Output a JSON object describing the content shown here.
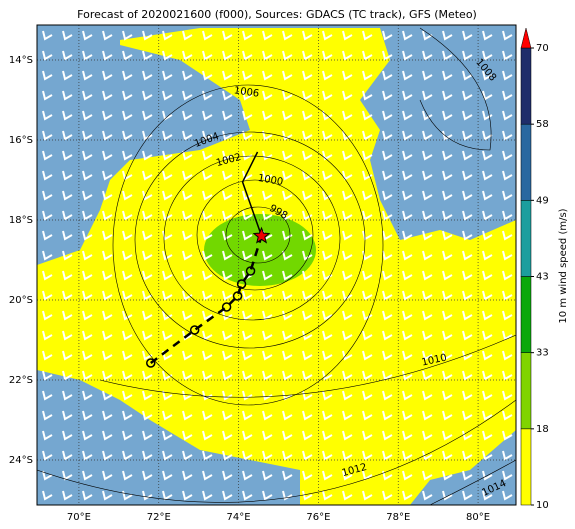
{
  "title": "Forecast of 2020021600 (f000), Sources: GDACS (TC track), GFS (Meteo)",
  "xlim": [
    68.95,
    80.95
  ],
  "ylim": [
    -25.125,
    -13.125
  ],
  "lon_ticks": [
    {
      "value": 70,
      "label": "70°E"
    },
    {
      "value": 72,
      "label": "72°E"
    },
    {
      "value": 74,
      "label": "74°E"
    },
    {
      "value": 76,
      "label": "76°E"
    },
    {
      "value": 78,
      "label": "78°E"
    },
    {
      "value": 80,
      "label": "80°E"
    }
  ],
  "lat_ticks": [
    {
      "value": -14,
      "label": "14°S"
    },
    {
      "value": -16,
      "label": "16°S"
    },
    {
      "value": -18,
      "label": "18°S"
    },
    {
      "value": -20,
      "label": "20°S"
    },
    {
      "value": -22,
      "label": "22°S"
    },
    {
      "value": -24,
      "label": "24°S"
    }
  ],
  "grid": true,
  "contours": [
    {
      "label": "1006",
      "lon": 74.2,
      "lat": -14.8,
      "angle": 8
    },
    {
      "label": "1004",
      "lon": 73.2,
      "lat": -16.0,
      "angle": -20
    },
    {
      "label": "1002",
      "lon": 73.75,
      "lat": -16.5,
      "angle": -15
    },
    {
      "label": "1000",
      "lon": 74.8,
      "lat": -17.0,
      "angle": 10
    },
    {
      "label": "998",
      "lon": 75.0,
      "lat": -17.8,
      "angle": 30
    },
    {
      "label": "1008",
      "lon": 80.2,
      "lat": -14.25,
      "angle": 50
    },
    {
      "label": "1010",
      "lon": 78.9,
      "lat": -21.5,
      "angle": -12
    },
    {
      "label": "1012",
      "lon": 76.9,
      "lat": -24.25,
      "angle": -15
    },
    {
      "label": "1014",
      "lon": 80.4,
      "lat": -24.7,
      "angle": -25
    }
  ],
  "past_track": {
    "lon": [
      71.8,
      72.9,
      73.7,
      73.975,
      74.075,
      74.3,
      74.575
    ],
    "lat": [
      -21.575,
      -20.75,
      -20.175,
      -19.9,
      -19.6,
      -19.275,
      -18.4
    ]
  },
  "forecast_track": {
    "lon": [
      74.575,
      74.1,
      74.475
    ],
    "lat": [
      -18.4,
      -17.05,
      -16.3
    ]
  },
  "colorbar": {
    "label": "10 m wind speed (m/s)",
    "ticks": [
      10,
      18,
      33,
      43,
      49,
      58,
      70
    ],
    "colors": [
      "#ffff00",
      "#80d400",
      "#0ba80b",
      "#1c9e9e",
      "#2a68a0",
      "#1f2d6a"
    ],
    "extend_color": "#ff0000"
  }
}
